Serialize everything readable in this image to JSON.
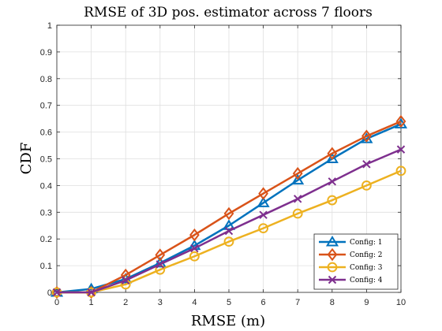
{
  "chart_data": {
    "type": "line",
    "title": "RMSE of 3D pos. estimator across 7 floors",
    "xlabel": "RMSE (m)",
    "ylabel": "CDF",
    "xlim": [
      0,
      10
    ],
    "ylim": [
      0,
      1
    ],
    "x": [
      0,
      1,
      2,
      3,
      4,
      5,
      6,
      7,
      8,
      9,
      10
    ],
    "xticks": [
      "0",
      "1",
      "2",
      "3",
      "4",
      "5",
      "6",
      "7",
      "8",
      "9",
      "10"
    ],
    "yticks": [
      "0",
      "0.1",
      "0.2",
      "0.3",
      "0.4",
      "0.5",
      "0.6",
      "0.7",
      "0.8",
      "0.9",
      "1"
    ],
    "grid": true,
    "legend_position": "bottom-right",
    "series": [
      {
        "name": "Config: 1",
        "color": "#0072BD",
        "marker": "triangle",
        "values": [
          0,
          0.013,
          0.05,
          0.11,
          0.175,
          0.25,
          0.335,
          0.42,
          0.5,
          0.575,
          0.63
        ]
      },
      {
        "name": "Config: 2",
        "color": "#D95319",
        "marker": "diamond",
        "values": [
          0,
          0,
          0.065,
          0.14,
          0.215,
          0.295,
          0.37,
          0.445,
          0.52,
          0.585,
          0.64
        ]
      },
      {
        "name": "Config: 3",
        "color": "#EDB120",
        "marker": "circle",
        "values": [
          0,
          0,
          0.03,
          0.085,
          0.135,
          0.19,
          0.24,
          0.295,
          0.345,
          0.4,
          0.455
        ]
      },
      {
        "name": "Config: 4",
        "color": "#7E2F8E",
        "marker": "x",
        "values": [
          0,
          0,
          0.045,
          0.105,
          0.165,
          0.23,
          0.29,
          0.35,
          0.415,
          0.48,
          0.535
        ]
      }
    ]
  }
}
